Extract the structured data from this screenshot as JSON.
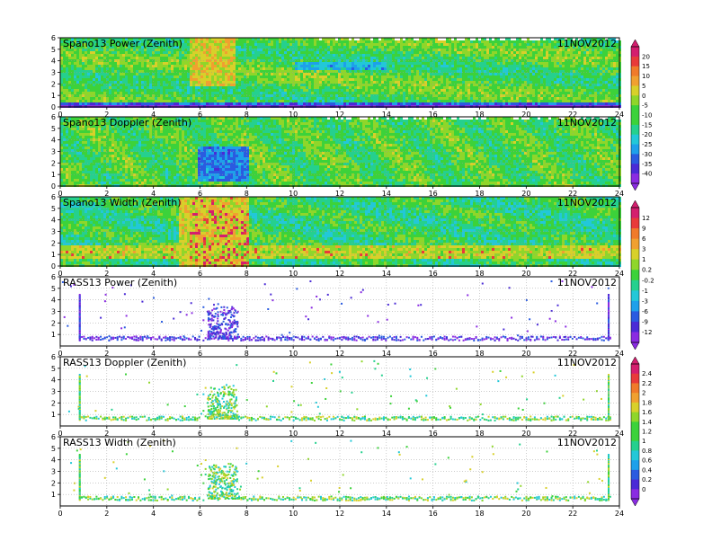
{
  "chart_data": [
    {
      "type": "heatmap",
      "title": "Spano13 Power (Zenith)",
      "date": "11NOV2012",
      "xlim": [
        0,
        24
      ],
      "xticks": [
        "0",
        "2",
        "4",
        "6",
        "8",
        "10",
        "12",
        "14",
        "16",
        "18",
        "20",
        "22",
        "24"
      ],
      "ylim": [
        0,
        6
      ],
      "yticks": [
        "0",
        "1",
        "2",
        "3",
        "4",
        "5",
        "6"
      ],
      "colorbar": [
        "20",
        "15",
        "10",
        "5",
        "0",
        "-5",
        "-10",
        "-15",
        "-20",
        "-25",
        "-30",
        "-35",
        "-40"
      ],
      "grid": true
    },
    {
      "type": "heatmap",
      "title": "Spano13 Doppler (Zenith)",
      "date": "11NOV2012",
      "xlim": [
        0,
        24
      ],
      "xticks": [
        "0",
        "2",
        "4",
        "6",
        "8",
        "10",
        "12",
        "14",
        "16",
        "18",
        "20",
        "22",
        "24"
      ],
      "ylim": [
        0,
        6
      ],
      "yticks": [
        "0",
        "1",
        "2",
        "3",
        "4",
        "5",
        "6"
      ],
      "colorbar": [
        "20",
        "15",
        "10",
        "5",
        "0",
        "-5",
        "-10",
        "-15",
        "-20",
        "-25",
        "-30",
        "-35",
        "-40"
      ],
      "grid": true
    },
    {
      "type": "heatmap",
      "title": "Spano13 Width (Zenith)",
      "date": "11NOV2012",
      "xlim": [
        0,
        24
      ],
      "xticks": [
        "0",
        "2",
        "4",
        "6",
        "8",
        "10",
        "12",
        "14",
        "16",
        "18",
        "20",
        "22",
        "24"
      ],
      "ylim": [
        0,
        6
      ],
      "yticks": [
        "0",
        "1",
        "2",
        "3",
        "4",
        "5",
        "6"
      ],
      "colorbar": [
        "12",
        "9",
        "6",
        "3",
        "1",
        "0.2",
        "-0.2",
        "-1",
        "-3",
        "-6",
        "-9",
        "-12"
      ],
      "grid": true
    },
    {
      "type": "scatter",
      "title": "RASS13 Power (Zenith)",
      "date": "11NOV2012",
      "xlim": [
        0,
        24
      ],
      "xticks": [
        "0",
        "2",
        "4",
        "6",
        "8",
        "10",
        "12",
        "14",
        "16",
        "18",
        "20",
        "22",
        "24"
      ],
      "ylim": [
        0,
        6
      ],
      "yticks": [
        "1",
        "2",
        "3",
        "4",
        "5",
        "6"
      ],
      "colorbar": [
        "12",
        "9",
        "6",
        "3",
        "1",
        "0.2",
        "-0.2",
        "-1",
        "-3",
        "-6",
        "-9",
        "-12"
      ],
      "grid": true
    },
    {
      "type": "scatter",
      "title": "RASS13 Doppler (Zenith)",
      "date": "11NOV2012",
      "xlim": [
        0,
        24
      ],
      "xticks": [
        "0",
        "2",
        "4",
        "6",
        "8",
        "10",
        "12",
        "14",
        "16",
        "18",
        "20",
        "22",
        "24"
      ],
      "ylim": [
        0,
        6
      ],
      "yticks": [
        "1",
        "2",
        "3",
        "4",
        "5",
        "6"
      ],
      "colorbar": [
        "2.4",
        "2.2",
        "2",
        "1.8",
        "1.6",
        "1.4",
        "1.2",
        "1",
        "0.8",
        "0.6",
        "0.4",
        "0.2",
        "0"
      ],
      "grid": true
    },
    {
      "type": "scatter",
      "title": "RASS13 Width (Zenith)",
      "date": "11NOV2012",
      "xlim": [
        0,
        24
      ],
      "xticks": [
        "0",
        "2",
        "4",
        "6",
        "8",
        "10",
        "12",
        "14",
        "16",
        "18",
        "20",
        "22",
        "24"
      ],
      "ylim": [
        0,
        6
      ],
      "yticks": [
        "1",
        "2",
        "3",
        "4",
        "5",
        "6"
      ],
      "colorbar": [
        "2.4",
        "2.2",
        "2",
        "1.8",
        "1.6",
        "1.4",
        "1.2",
        "1",
        "0.8",
        "0.6",
        "0.4",
        "0.2",
        "0"
      ],
      "grid": true
    }
  ],
  "colors": {
    "ramp": [
      "#8a2be2",
      "#4a2ad6",
      "#2a5be0",
      "#1ea0ea",
      "#22c8d8",
      "#25d08e",
      "#3cd23a",
      "#8fd62a",
      "#d8d02a",
      "#f0a030",
      "#f07a2a",
      "#e83a3a",
      "#d41e6e"
    ]
  }
}
